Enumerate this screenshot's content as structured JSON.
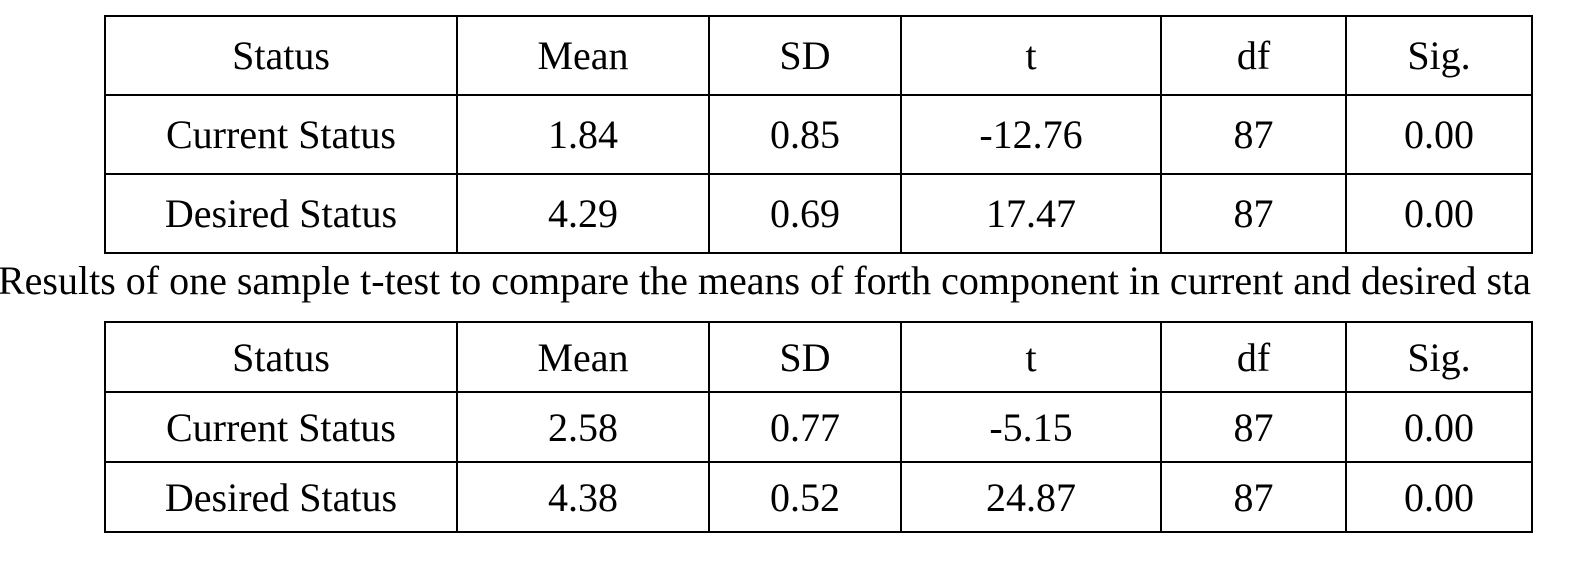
{
  "tables": [
    {
      "header": [
        "Status",
        "Mean",
        "SD",
        "t",
        "df",
        "Sig."
      ],
      "rows": [
        [
          "Current Status",
          "1.84",
          "0.85",
          "-12.76",
          "87",
          "0.00"
        ],
        [
          "Desired Status",
          "4.29",
          "0.69",
          "17.47",
          "87",
          "0.00"
        ]
      ]
    },
    {
      "header": [
        "Status",
        "Mean",
        "SD",
        "t",
        "df",
        "Sig."
      ],
      "rows": [
        [
          "Current Status",
          "2.58",
          "0.77",
          "-5.15",
          "87",
          "0.00"
        ],
        [
          "Desired Status",
          "4.38",
          "0.52",
          "24.87",
          "87",
          "0.00"
        ]
      ]
    }
  ],
  "caption": "Results of one sample t-test to compare the means of forth component in current and desired sta"
}
